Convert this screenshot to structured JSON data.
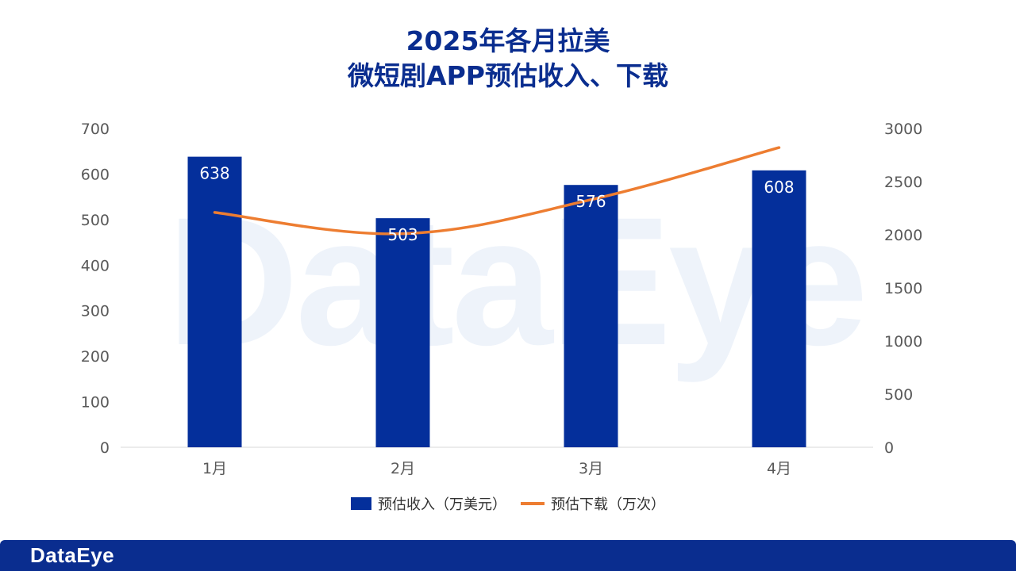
{
  "header": {
    "title_line1": "2025年各月拉美",
    "title_line2": "微短剧APP预估收入、下载"
  },
  "watermark": "DataEye",
  "footer": {
    "logo": "DataEye"
  },
  "colors": {
    "title": "#0a2d8f",
    "bar": "#042f9b",
    "line": "#ed7d31",
    "footer": "#0a2d8f",
    "axis_text": "#595959"
  },
  "chart_data": {
    "type": "bar",
    "categories": [
      "1月",
      "2月",
      "3月",
      "4月"
    ],
    "series": [
      {
        "name": "预估收入（万美元）",
        "type": "bar",
        "axis": "left",
        "values": [
          638,
          503,
          576,
          608
        ]
      },
      {
        "name": "预估下载（万次）",
        "type": "line",
        "axis": "right",
        "values": [
          2210,
          2010,
          2330,
          2820
        ]
      }
    ],
    "y_left": {
      "min": 0,
      "max": 700,
      "ticks": [
        0,
        100,
        200,
        300,
        400,
        500,
        600,
        700
      ]
    },
    "y_right": {
      "min": 0,
      "max": 3000,
      "ticks": [
        0,
        500,
        1000,
        1500,
        2000,
        2500,
        3000
      ]
    },
    "data_labels": [
      "638",
      "503",
      "576",
      "608"
    ],
    "grid": false,
    "legend_position": "bottom"
  }
}
